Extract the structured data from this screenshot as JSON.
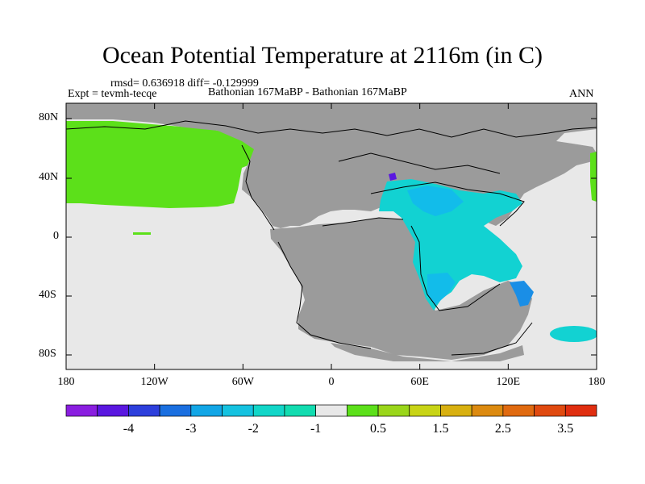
{
  "title": "Ocean Potential Temperature at 2116m (in C)",
  "stats": "rmsd= 0.636918 diff= -0.129999",
  "expt": "Expt = tevmh-tecqe",
  "case": "Bathonian 167MaBP - Bathonian 167MaBP",
  "period": "ANN",
  "lat_ticks": [
    "80N",
    "40N",
    "0",
    "40S",
    "80S"
  ],
  "lon_ticks": [
    "180",
    "120W",
    "60W",
    "0",
    "60E",
    "120E",
    "180"
  ],
  "colorbar": {
    "labels": [
      "-4",
      "-3",
      "-2",
      "-1",
      "0.5",
      "1.5",
      "2.5",
      "3.5"
    ],
    "colors": [
      "#8a1ee0",
      "#5a17e0",
      "#2d3fdc",
      "#1a6fe0",
      "#12a6e6",
      "#15c2e0",
      "#12d6c8",
      "#12dcb0",
      "#e8e8e8",
      "#5ce01a",
      "#9ad61a",
      "#c8d416",
      "#d8b010",
      "#dc8a10",
      "#e06a10",
      "#e04a10",
      "#e02e10"
    ]
  },
  "legend_colors": {
    "land": "#9b9b9b",
    "near_zero": "#e8e8e8",
    "green": "#5ce01a",
    "cyan": "#12d2d2",
    "light_blue": "#12bcea",
    "blue": "#1a8ee6",
    "purple": "#5a17e0"
  }
}
